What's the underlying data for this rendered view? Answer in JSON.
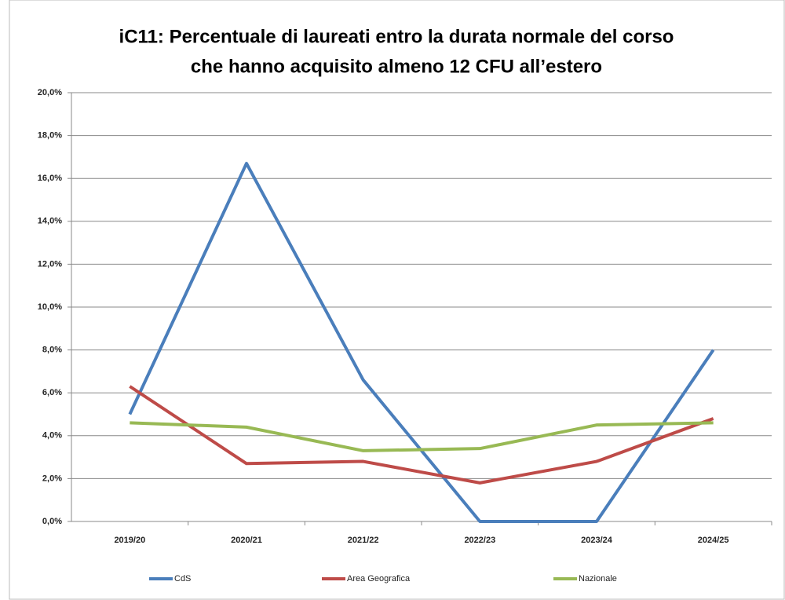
{
  "chart_data": {
    "type": "line",
    "title": [
      "iC11: Percentuale di laureati entro la durata normale del corso",
      "che hanno acquisito almeno 12 CFU all’estero"
    ],
    "categories": [
      "2019/20",
      "2020/21",
      "2021/22",
      "2022/23",
      "2023/24",
      "2024/25"
    ],
    "series": [
      {
        "name": "CdS",
        "color": "#4a7ebb",
        "values": [
          5.0,
          16.7,
          6.6,
          0,
          0,
          8.0
        ]
      },
      {
        "name": "Area Geografica",
        "color": "#be4b48",
        "values": [
          6.3,
          2.7,
          2.8,
          1.8,
          2.8,
          4.8
        ]
      },
      {
        "name": "Nazionale",
        "color": "#98b954",
        "values": [
          4.6,
          4.4,
          3.3,
          3.4,
          4.5,
          4.6
        ]
      }
    ],
    "ylim": [
      0,
      20
    ],
    "yticks": [
      {
        "value": 0,
        "label": "0,0%"
      },
      {
        "value": 2,
        "label": "2,0%"
      },
      {
        "value": 4,
        "label": "4,0%"
      },
      {
        "value": 6,
        "label": "6,0%"
      },
      {
        "value": 8,
        "label": "8,0%"
      },
      {
        "value": 10,
        "label": "10,0%"
      },
      {
        "value": 12,
        "label": "12,0%"
      },
      {
        "value": 14,
        "label": "14,0%"
      },
      {
        "value": 16,
        "label": "16,0%"
      },
      {
        "value": 18,
        "label": "18,0%"
      },
      {
        "value": 20,
        "label": "20,0%"
      }
    ],
    "grid": true,
    "legend": "bottom"
  }
}
